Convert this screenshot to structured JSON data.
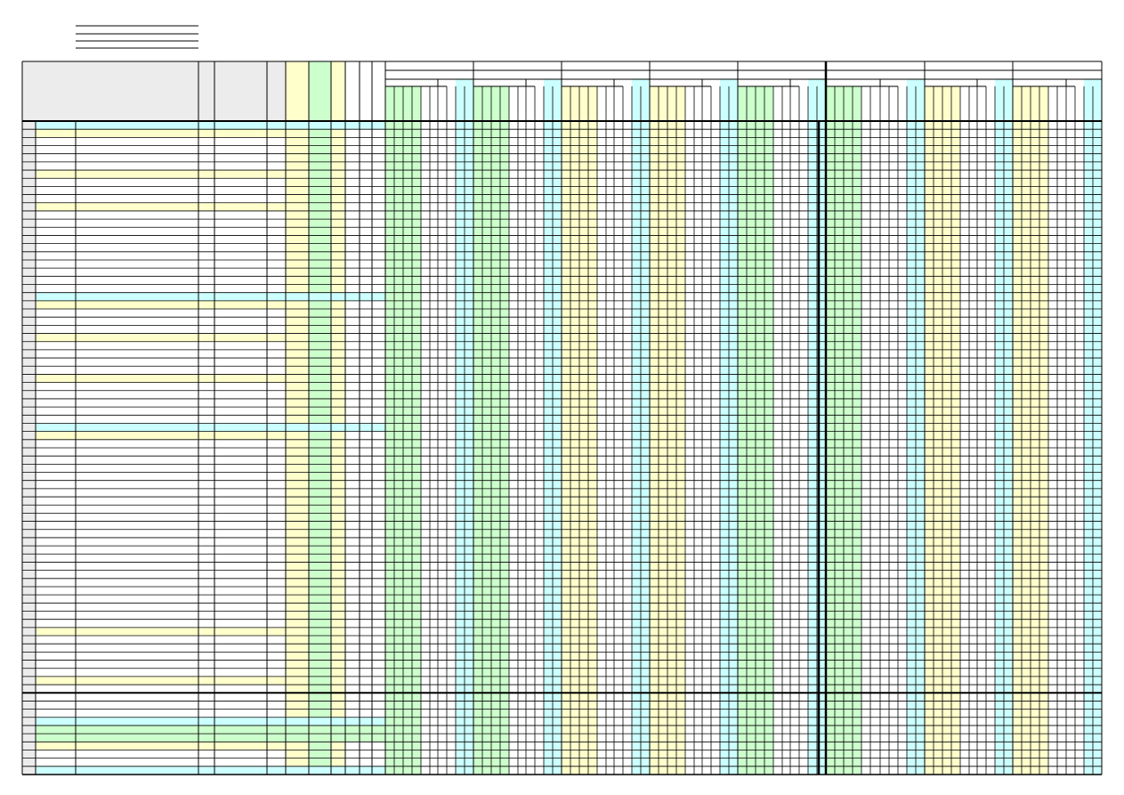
{
  "document": {
    "type": "blank-spreadsheet-form",
    "top_lines": 4,
    "left_columns": 12,
    "month_groups": 8,
    "body_rows": 80
  },
  "colors": {
    "grid": "#000000",
    "header_gray": "#ececec",
    "yellow": "#ffffcc",
    "green": "#ccffcc",
    "cyan": "#ccffff",
    "white": "#ffffff"
  },
  "fills": {
    "left_columns": [
      "gray",
      "white",
      "white",
      "white",
      "white",
      "white",
      "yellow",
      "green",
      "yellow",
      "white",
      "white",
      "white"
    ],
    "group_patterns": [
      [
        "green",
        "green",
        "green",
        "green",
        "white",
        "white",
        "white",
        "white",
        "cyan",
        "cyan"
      ],
      [
        "green",
        "green",
        "green",
        "green",
        "white",
        "white",
        "white",
        "white",
        "cyan",
        "cyan"
      ],
      [
        "yellow",
        "yellow",
        "yellow",
        "yellow",
        "white",
        "white",
        "white",
        "white",
        "cyan",
        "cyan"
      ],
      [
        "yellow",
        "yellow",
        "yellow",
        "yellow",
        "white",
        "white",
        "white",
        "white",
        "cyan",
        "cyan"
      ],
      [
        "green",
        "green",
        "green",
        "green",
        "white",
        "white",
        "white",
        "white",
        "cyan",
        "cyan"
      ],
      [
        "green",
        "green",
        "green",
        "green",
        "white",
        "white",
        "white",
        "white",
        "white",
        "cyan",
        "cyan"
      ],
      [
        "yellow",
        "yellow",
        "yellow",
        "yellow",
        "white",
        "white",
        "white",
        "white",
        "cyan",
        "cyan"
      ],
      [
        "yellow",
        "yellow",
        "yellow",
        "yellow",
        "white",
        "white",
        "white",
        "white",
        "cyan",
        "cyan"
      ]
    ],
    "band_rows": [
      {
        "row": 0,
        "color": "cyan",
        "to": "left-block"
      },
      {
        "row": 1,
        "color": "yellow",
        "to": "weight-column"
      },
      {
        "row": 6,
        "color": "yellow",
        "to": "weight-column"
      },
      {
        "row": 10,
        "color": "yellow",
        "to": "weight-column"
      },
      {
        "row": 21,
        "color": "cyan",
        "to": "left-block"
      },
      {
        "row": 22,
        "color": "yellow",
        "to": "weight-column"
      },
      {
        "row": 26,
        "color": "yellow",
        "to": "weight-column"
      },
      {
        "row": 31,
        "color": "yellow",
        "to": "weight-column"
      },
      {
        "row": 37,
        "color": "cyan",
        "to": "left-block"
      },
      {
        "row": 38,
        "color": "yellow",
        "to": "weight-column"
      },
      {
        "row": 62,
        "color": "yellow",
        "to": "weight-column"
      },
      {
        "row": 68,
        "color": "yellow",
        "to": "weight-column"
      },
      {
        "row": 73,
        "color": "cyan",
        "to": "left-block"
      },
      {
        "row": 74,
        "color": "green",
        "to": "left-block"
      },
      {
        "row": 76,
        "color": "yellow",
        "to": "weight-column"
      },
      {
        "row": 79,
        "color": "cyan",
        "to": "left-block"
      }
    ],
    "thick_row": 70
  }
}
